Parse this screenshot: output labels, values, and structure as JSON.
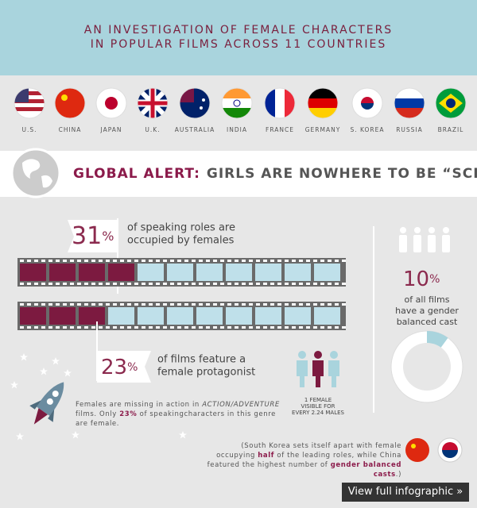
{
  "header": {
    "title": [
      "AN INVESTIGATION OF FEMALE CHARACTERS",
      "IN POPULAR FILMS ACROSS 11 COUNTRIES"
    ]
  },
  "countries": [
    "U.S.",
    "CHINA",
    "JAPAN",
    "U.K.",
    "AUSTRALIA",
    "INDIA",
    "FRANCE",
    "GERMANY",
    "S. KOREA",
    "RUSSIA",
    "BRAZIL"
  ],
  "alert": {
    "lead": "GLOBAL ALERT:",
    "text": "GIRLS ARE NOWHERE TO BE “SCENE”"
  },
  "stats": [
    {
      "number": "31",
      "unit": "%",
      "text": [
        "of speaking roles are",
        "occupied by females"
      ]
    },
    {
      "number": "23",
      "unit": "%",
      "text": [
        "of films feature a",
        "female protagonist"
      ]
    },
    {
      "number": "10",
      "unit": "%",
      "text": [
        "of all films",
        "have a gender",
        "balanced cast"
      ]
    }
  ],
  "ratio": [
    "1 FEMALE",
    "VISIBLE FOR",
    "EVERY 2.24 MALES"
  ],
  "action": [
    "Females are missing in action in ",
    "ACTION/ADVENTURE",
    " films. Only ",
    "23%",
    " of speakingcharacters in this genre are female."
  ],
  "korea": [
    "(South Korea sets itself apart with female occupying ",
    "half",
    " of the leading roles, while China featured the highest number of ",
    "gender balanced casts",
    ".)"
  ],
  "button": "View full infographic »"
}
